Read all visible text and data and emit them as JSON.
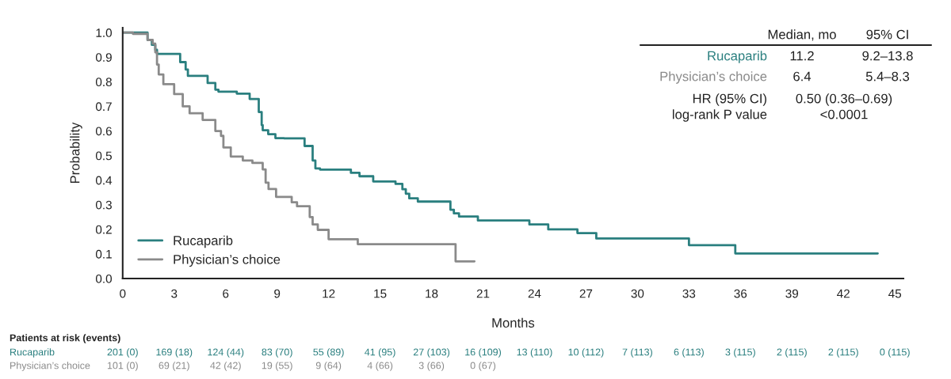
{
  "chart_data": {
    "type": "step",
    "xlabel": "Months",
    "ylabel": "Probability",
    "xlim": [
      0,
      45.5
    ],
    "ylim": [
      0,
      1.02
    ],
    "xticks": [
      0,
      3,
      6,
      9,
      12,
      15,
      18,
      21,
      24,
      27,
      30,
      33,
      36,
      39,
      42,
      45
    ],
    "yticks": [
      {
        "value": 0,
        "label": "0.0"
      },
      0.1,
      0.2,
      0.3,
      0.4,
      0.5,
      0.6,
      0.7,
      0.8,
      0.9,
      {
        "value": 1,
        "label": "1.0"
      }
    ],
    "legend": "bottom left",
    "grid": false,
    "series": [
      {
        "name": "Rucaparib",
        "color": "#2a7f7f",
        "x": [
          0,
          1.45,
          1.7,
          1.9,
          2.0,
          3.35,
          3.67,
          3.8,
          4.95,
          5.4,
          5.58,
          6.65,
          7.4,
          7.93,
          8.1,
          8.16,
          8.48,
          8.9,
          9.4,
          10.6,
          11.07,
          11.23,
          11.5,
          13.3,
          13.8,
          14.6,
          15.9,
          16.3,
          16.5,
          16.7,
          17.2,
          19.1,
          19.3,
          19.6,
          20.7,
          23.7,
          24.8,
          26.5,
          27.6,
          33.0,
          35.7,
          44.0
        ],
        "values": [
          1.0,
          0.97,
          0.95,
          0.93,
          0.913,
          0.88,
          0.85,
          0.824,
          0.795,
          0.768,
          0.76,
          0.752,
          0.73,
          0.677,
          0.624,
          0.603,
          0.587,
          0.571,
          0.57,
          0.539,
          0.48,
          0.448,
          0.443,
          0.43,
          0.416,
          0.395,
          0.385,
          0.363,
          0.345,
          0.326,
          0.313,
          0.28,
          0.265,
          0.252,
          0.236,
          0.22,
          0.2,
          0.185,
          0.163,
          0.136,
          0.102,
          0.102
        ]
      },
      {
        "name": "Physician’s choice",
        "color": "#8a8a8a",
        "x": [
          0,
          0.6,
          1.45,
          1.75,
          1.9,
          2.0,
          2.1,
          2.37,
          3.0,
          3.5,
          3.9,
          4.66,
          5.4,
          5.73,
          5.87,
          6.3,
          7.0,
          7.56,
          8.16,
          8.33,
          8.5,
          8.94,
          9.85,
          10.16,
          10.9,
          11.07,
          11.37,
          12.0,
          13.7,
          19.4,
          20.5
        ],
        "values": [
          1.0,
          0.995,
          0.97,
          0.955,
          0.92,
          0.87,
          0.83,
          0.79,
          0.75,
          0.7,
          0.672,
          0.645,
          0.6,
          0.58,
          0.533,
          0.496,
          0.48,
          0.47,
          0.444,
          0.39,
          0.364,
          0.332,
          0.31,
          0.294,
          0.25,
          0.22,
          0.198,
          0.16,
          0.14,
          0.07,
          0.07
        ]
      }
    ],
    "annotations": [
      "Median, mo",
      "95% CI",
      "Rucaparib",
      "11.2",
      "9.2–13.8",
      "Physician’s choice",
      "6.4",
      "5.4–8.3",
      "HR (95% CI)",
      "0.50 (0.36–0.69)",
      "log-rank P value",
      "<0.0001",
      "Patients at risk (events)",
      "Rucaparib",
      "Physician’s choice",
      "201 (0)",
      "169 (18)",
      "124 (44)",
      "83 (70)",
      "55 (89)",
      "41 (95)",
      "27 (103)",
      "16 (109)",
      "13 (110)",
      "10 (112)",
      "7 (113)",
      "6 (113)",
      "3 (115)",
      "2 (115)",
      "2 (115)",
      "0 (115)",
      "101 (0)",
      "69 (21)",
      "42 (42)",
      "19 (55)",
      "9 (64)",
      "4 (66)",
      "3 (66)",
      "0 (67)"
    ]
  }
}
